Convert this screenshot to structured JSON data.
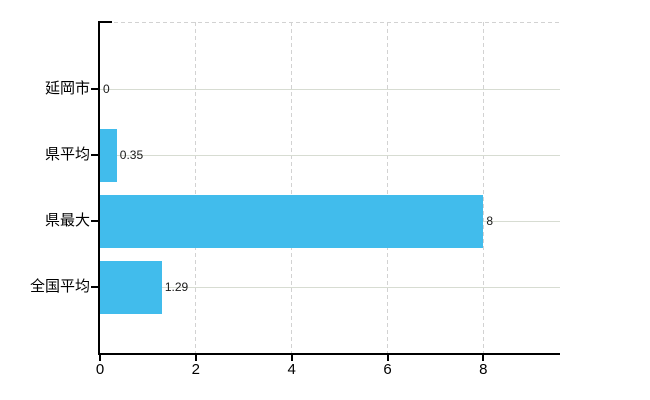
{
  "chart_data": {
    "type": "bar",
    "orientation": "horizontal",
    "title": "",
    "xlabel": "",
    "ylabel": "",
    "categories": [
      "延岡市",
      "県平均",
      "県最大",
      "全国平均"
    ],
    "values": [
      0,
      0.35,
      8,
      1.29
    ],
    "value_labels": [
      "0",
      "0.35",
      "8",
      "1.29"
    ],
    "xlim": [
      0,
      9.6
    ],
    "xticks": [
      0,
      2,
      4,
      6,
      8
    ],
    "xtick_labels": [
      "0",
      "2",
      "4",
      "6",
      "8"
    ],
    "grid": "on",
    "legend": "none",
    "colors": {
      "bar": "#41bcec",
      "grid_solid": "#d7dcd2",
      "grid_dashed": "#d2d2d2",
      "axis": "#000000",
      "tick_text": "#000000",
      "value_text": "#1a1a1a",
      "background": "#ffffff"
    }
  }
}
